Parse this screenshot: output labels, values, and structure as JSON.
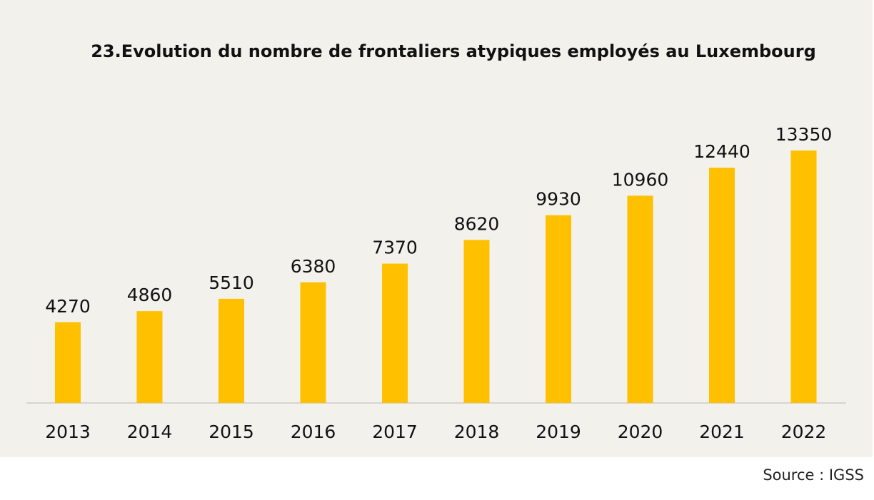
{
  "chart_data": {
    "type": "bar",
    "title": "23.Evolution du nombre de frontaliers atypiques employés au Luxembourg",
    "categories": [
      "2013",
      "2014",
      "2015",
      "2016",
      "2017",
      "2018",
      "2019",
      "2020",
      "2021",
      "2022"
    ],
    "values": [
      4270,
      4860,
      5510,
      6380,
      7370,
      8620,
      9930,
      10960,
      12440,
      13350
    ],
    "xlabel": "",
    "ylabel": "",
    "ylim": [
      0,
      13350
    ],
    "grid": false,
    "bar_color": "#ffc000",
    "source": "Source : IGSS"
  }
}
